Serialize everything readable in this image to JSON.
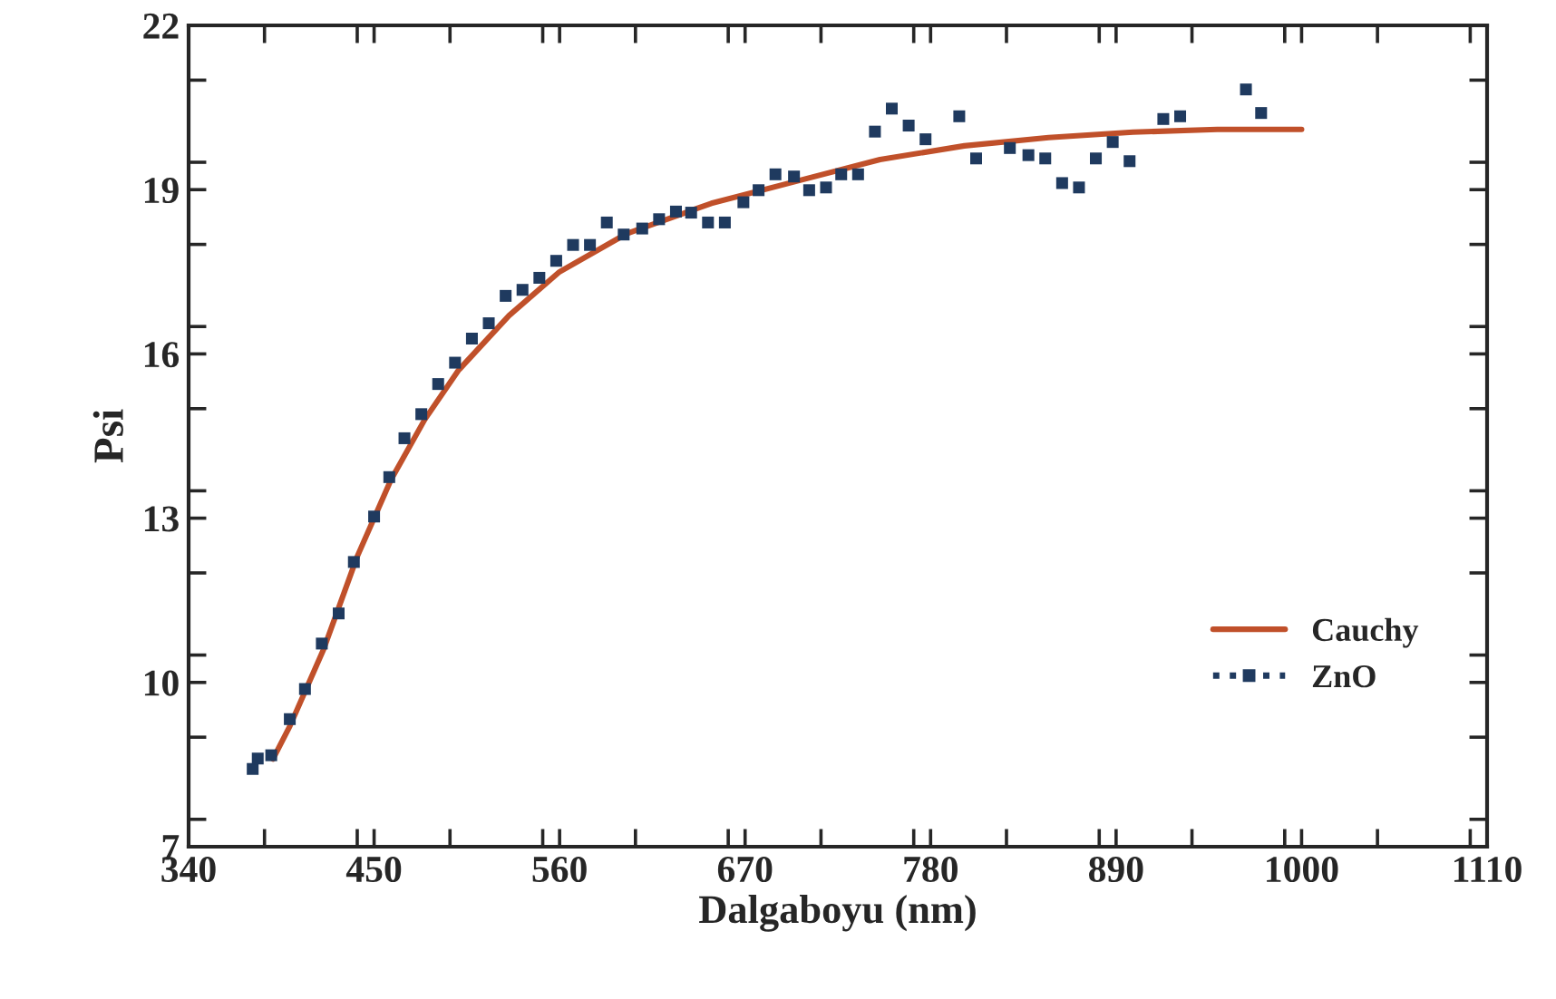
{
  "chart_data": {
    "type": "scatter",
    "xlabel": "Dalgaboyu (nm)",
    "ylabel": "Psi",
    "xlim": [
      340,
      1110
    ],
    "xticks": [
      340,
      450,
      560,
      670,
      780,
      890,
      1000,
      1110
    ],
    "ylim": [
      7,
      22
    ],
    "yticks": [
      7,
      10,
      13,
      16,
      19,
      22
    ],
    "grid": false,
    "legend": "bottom right",
    "series": [
      {
        "name": "Cauchy",
        "type": "line",
        "color": "#c0502a",
        "marker": "none",
        "line_style": "solid",
        "x": [
          390,
          400,
          420,
          440,
          460,
          480,
          500,
          530,
          560,
          600,
          650,
          700,
          750,
          800,
          850,
          900,
          950,
          1000
        ],
        "values": [
          8.6,
          9.2,
          10.6,
          12.3,
          13.7,
          14.8,
          15.7,
          16.7,
          17.5,
          18.2,
          18.75,
          19.15,
          19.55,
          19.8,
          19.95,
          20.05,
          20.1,
          20.1
        ]
      },
      {
        "name": "ZnO",
        "color": "#1f3a5f",
        "marker": "square",
        "x": [
          378,
          381,
          389,
          400,
          409,
          419,
          429,
          438,
          450,
          459,
          468,
          478,
          488,
          498,
          508,
          518,
          528,
          538,
          548,
          558,
          568,
          578,
          588,
          598,
          609,
          619,
          629,
          638,
          648,
          658,
          669,
          678,
          688,
          699,
          708,
          718,
          727,
          737,
          747,
          757,
          767,
          777,
          797,
          807,
          827,
          838,
          848,
          858,
          868,
          878,
          888,
          898,
          918,
          928,
          967,
          976
        ],
        "values": [
          8.42,
          8.61,
          8.67,
          9.33,
          9.88,
          10.71,
          11.26,
          12.2,
          13.03,
          13.75,
          14.46,
          14.9,
          15.45,
          15.84,
          16.28,
          16.56,
          17.06,
          17.17,
          17.39,
          17.7,
          17.99,
          17.99,
          18.4,
          18.18,
          18.29,
          18.46,
          18.6,
          18.58,
          18.4,
          18.4,
          18.77,
          18.99,
          19.28,
          19.24,
          18.99,
          19.04,
          19.28,
          19.28,
          20.06,
          20.48,
          20.17,
          19.92,
          20.34,
          19.57,
          19.76,
          19.63,
          19.57,
          19.12,
          19.04,
          19.57,
          19.87,
          19.52,
          20.29,
          20.34,
          20.83,
          20.4
        ]
      }
    ]
  }
}
